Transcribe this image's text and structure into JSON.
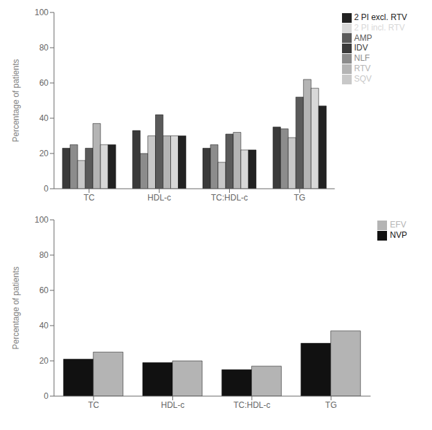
{
  "chart_data": [
    {
      "type": "bar",
      "categories": [
        "TC",
        "HDL-c",
        "TC:HDL-c",
        "TG"
      ],
      "series": [
        {
          "name": "IDV",
          "color": "#3a3a3a",
          "values": [
            23,
            33,
            23,
            35
          ]
        },
        {
          "name": "NLF",
          "color": "#8c8c8c",
          "values": [
            25,
            20,
            25,
            34
          ]
        },
        {
          "name": "SQV",
          "color": "#c8c8c8",
          "values": [
            16,
            30,
            15,
            29
          ]
        },
        {
          "name": "AMP",
          "color": "#5a5a5a",
          "values": [
            23,
            42,
            31,
            52
          ]
        },
        {
          "name": "RTV",
          "color": "#b4b4b4",
          "values": [
            37,
            30,
            32,
            62
          ]
        },
        {
          "name": "2 PI incl. RTV",
          "color": "#d8d8d8",
          "values": [
            25,
            30,
            22,
            57
          ]
        },
        {
          "name": "2 PI excl. RTV",
          "color": "#222222",
          "values": [
            25,
            30,
            22,
            47
          ]
        }
      ],
      "ylabel": "Percentage of patients",
      "ylim": [
        0,
        100
      ],
      "yticks": [
        0,
        20,
        40,
        60,
        80,
        100
      ],
      "legend": "right"
    },
    {
      "type": "bar",
      "categories": [
        "TC",
        "HDL-c",
        "TC:HDL-c",
        "TG"
      ],
      "series": [
        {
          "name": "NVP",
          "color": "#111111",
          "values": [
            21,
            19,
            15,
            30
          ]
        },
        {
          "name": "EFV",
          "color": "#b4b4b4",
          "values": [
            25,
            20,
            17,
            37
          ]
        }
      ],
      "ylabel": "Percentage of patients",
      "ylim": [
        0,
        100
      ],
      "yticks": [
        0,
        20,
        40,
        60,
        80,
        100
      ],
      "legend": "right"
    }
  ]
}
